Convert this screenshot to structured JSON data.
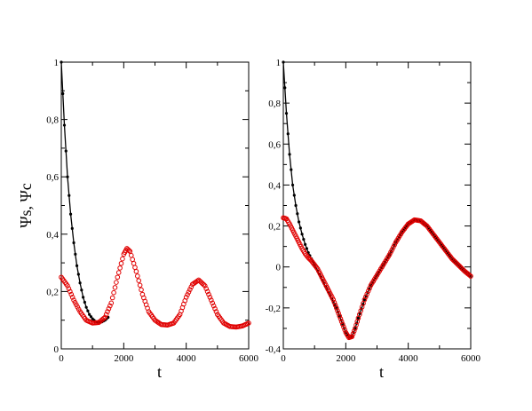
{
  "chart_data": [
    {
      "type": "line",
      "panel": "left",
      "xlabel": "t",
      "ylabel": "Ψs, Ψc",
      "xlim": [
        0,
        6000
      ],
      "ylim": [
        0,
        1
      ],
      "xticks": [
        0,
        2000,
        4000,
        6000
      ],
      "yticks": [
        0,
        0.2,
        0.4,
        0.6,
        0.8,
        1
      ],
      "ytick_labels": [
        "0",
        "0,2",
        "0,4",
        "0,6",
        "0,8",
        "1"
      ],
      "grid": false,
      "series": [
        {
          "marker": "small black circles with line",
          "color": "#000000",
          "x": [
            0,
            100,
            200,
            300,
            400,
            500,
            600,
            700,
            800,
            900,
            1000,
            1100,
            1200,
            1300,
            1400,
            1500
          ],
          "y": [
            1.0,
            0.78,
            0.6,
            0.47,
            0.37,
            0.29,
            0.23,
            0.18,
            0.145,
            0.12,
            0.105,
            0.095,
            0.092,
            0.094,
            0.1,
            0.11
          ]
        },
        {
          "marker": "red open circles",
          "color": "#e00000",
          "x": [
            0,
            200,
            400,
            600,
            800,
            1000,
            1200,
            1400,
            1600,
            1800,
            2000,
            2100,
            2200,
            2400,
            2600,
            2800,
            3000,
            3200,
            3400,
            3600,
            3800,
            4000,
            4200,
            4400,
            4600,
            4800,
            5000,
            5200,
            5400,
            5600,
            5800,
            6000
          ],
          "y": [
            0.25,
            0.22,
            0.17,
            0.13,
            0.1,
            0.09,
            0.092,
            0.11,
            0.16,
            0.25,
            0.33,
            0.35,
            0.34,
            0.27,
            0.19,
            0.13,
            0.1,
            0.085,
            0.083,
            0.09,
            0.12,
            0.18,
            0.225,
            0.24,
            0.22,
            0.17,
            0.12,
            0.09,
            0.078,
            0.076,
            0.08,
            0.09
          ]
        }
      ]
    },
    {
      "type": "line",
      "panel": "right",
      "xlabel": "t",
      "ylabel": "",
      "xlim": [
        0,
        6000
      ],
      "ylim": [
        -0.4,
        1
      ],
      "xticks": [
        0,
        2000,
        4000,
        6000
      ],
      "yticks": [
        -0.4,
        -0.2,
        0,
        0.2,
        0.4,
        0.6,
        0.8,
        1
      ],
      "ytick_labels": [
        "-0,4",
        "-0,2",
        "0",
        "0,2",
        "0,4",
        "0,6",
        "0,8",
        "1"
      ],
      "grid": false,
      "series": [
        {
          "marker": "small black circles with line",
          "color": "#000000",
          "x": [
            0,
            100,
            200,
            300,
            400,
            500,
            600,
            700,
            800,
            900,
            1000,
            1100,
            1200,
            1300,
            1400,
            1500,
            1600,
            1700,
            1800,
            1900,
            2000,
            2100,
            2200,
            2300,
            2400,
            2600,
            2800,
            3000,
            3200,
            3400,
            3600,
            3800,
            4000,
            4200,
            4400,
            4600,
            4800,
            5000,
            5200,
            5400,
            5600,
            5800,
            6000
          ],
          "y": [
            1.0,
            0.75,
            0.55,
            0.4,
            0.3,
            0.22,
            0.16,
            0.11,
            0.07,
            0.04,
            0.01,
            -0.02,
            -0.05,
            -0.08,
            -0.11,
            -0.14,
            -0.17,
            -0.2,
            -0.24,
            -0.28,
            -0.32,
            -0.345,
            -0.34,
            -0.3,
            -0.25,
            -0.16,
            -0.09,
            -0.04,
            0.01,
            0.06,
            0.12,
            0.17,
            0.21,
            0.23,
            0.225,
            0.2,
            0.16,
            0.12,
            0.08,
            0.04,
            0.01,
            -0.02,
            -0.045
          ]
        },
        {
          "marker": "red open circles",
          "color": "#e00000",
          "x": [
            0,
            100,
            200,
            300,
            400,
            500,
            600,
            700,
            800,
            900,
            1000,
            1100,
            1200,
            1300,
            1400,
            1500,
            1600,
            1700,
            1800,
            1900,
            2000,
            2100,
            2200,
            2300,
            2400,
            2600,
            2800,
            3000,
            3200,
            3400,
            3600,
            3800,
            4000,
            4200,
            4400,
            4600,
            4800,
            5000,
            5200,
            5400,
            5600,
            5800,
            6000
          ],
          "y": [
            0.24,
            0.235,
            0.21,
            0.18,
            0.15,
            0.12,
            0.09,
            0.065,
            0.045,
            0.03,
            0.01,
            -0.01,
            -0.04,
            -0.07,
            -0.1,
            -0.13,
            -0.16,
            -0.2,
            -0.24,
            -0.28,
            -0.32,
            -0.345,
            -0.34,
            -0.3,
            -0.25,
            -0.16,
            -0.09,
            -0.04,
            0.01,
            0.06,
            0.12,
            0.17,
            0.21,
            0.23,
            0.225,
            0.2,
            0.16,
            0.12,
            0.08,
            0.04,
            0.01,
            -0.02,
            -0.045
          ]
        }
      ]
    }
  ]
}
